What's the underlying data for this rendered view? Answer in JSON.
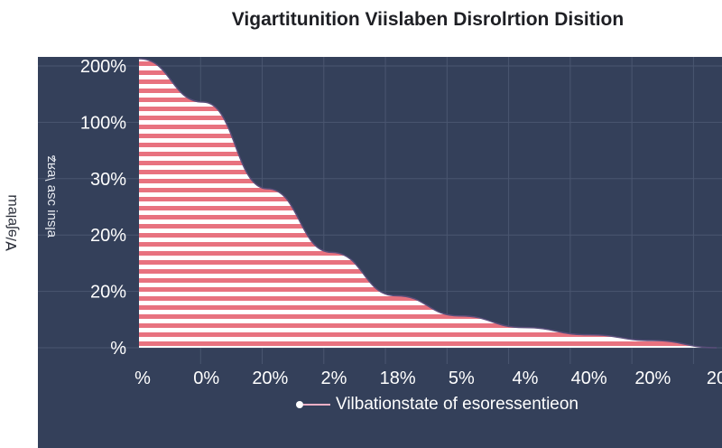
{
  "chart_data": {
    "type": "area",
    "title": "Vigartitunition Viislaben Disrolrtion Disition",
    "ylabel_outer": "Ɐ/ɘʃɐlɐɯ",
    "ylabel_inner": "ɐlsuᴉ ɔsɐ \\ɐᴙʑ",
    "y_tick_labels": [
      "200%",
      "100%",
      "30%",
      "20%",
      "20%",
      "%"
    ],
    "x_tick_labels": [
      "%",
      "0%",
      "20%",
      "2%",
      "18%",
      "5%",
      "4%",
      "40%",
      "20%",
      "20"
    ],
    "series": [
      {
        "name": "Vilbationstate of esoressentieon",
        "x": [
          0,
          1,
          2,
          3,
          4,
          5,
          6,
          7,
          8,
          9
        ],
        "values": [
          100,
          85,
          55,
          33,
          18,
          11,
          7,
          4.5,
          2.5,
          0
        ]
      }
    ],
    "xlim": [
      0,
      9
    ],
    "ylim": [
      0,
      100
    ],
    "grid": true,
    "legend_position": "bottom-center"
  },
  "colors": {
    "panel_bg": "#34405a",
    "grid": "#4a5670",
    "stripe_red": "#e8727f",
    "stripe_white": "#ffffff",
    "outline": "#5a4e7a",
    "tick_text": "#ffffff"
  }
}
